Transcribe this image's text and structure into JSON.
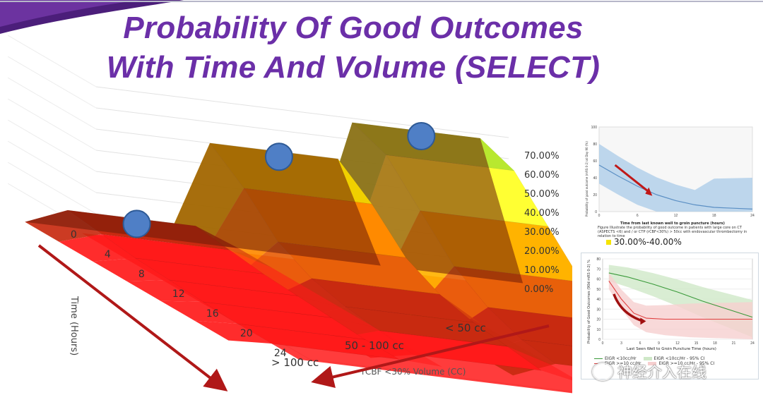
{
  "slide": {
    "title_line1": "Probability Of Good Outcomes",
    "title_line2": "With Time And Volume (SELECT)"
  },
  "chart_data": [
    {
      "type": "surface3d",
      "title": "Probability Of Good Outcomes With Time And Volume (SELECT)",
      "x_axis": {
        "label": "Time (Hours)",
        "ticks": [
          "0",
          "4",
          "8",
          "12",
          "16",
          "20",
          "24"
        ]
      },
      "y_axis": {
        "label": "rCBF <30% Volume (CC)",
        "categories": [
          "> 100 cc",
          "50 - 100 cc",
          "< 50 cc"
        ]
      },
      "z_axis": {
        "ticks": [
          "0.00%",
          "10.00%",
          "20.00%",
          "30.00%",
          "40.00%",
          "50.00%",
          "60.00%",
          "70.00%"
        ],
        "zlim": [
          0,
          70
        ]
      },
      "series": [
        {
          "name": "> 100 cc",
          "values": [
            10,
            8,
            6,
            5,
            4,
            3,
            3
          ]
        },
        {
          "name": "50 - 100 cc",
          "values": [
            50,
            38,
            22,
            14,
            10,
            8,
            6
          ]
        },
        {
          "name": "< 50 cc",
          "values": [
            68,
            62,
            45,
            28,
            18,
            12,
            10
          ]
        }
      ],
      "color_bands": [
        "#ff1a1a",
        "#c82a10",
        "#e8600a",
        "#ff8a00",
        "#ffb300",
        "#f0d000",
        "#ffff33",
        "#b8e830",
        "#5fcf2a"
      ],
      "markers": [
        {
          "series": "> 100 cc",
          "time": 0
        },
        {
          "series": "50 - 100 cc",
          "time": 0
        },
        {
          "series": "< 50 cc",
          "time": 0
        }
      ]
    },
    {
      "type": "line",
      "xlabel": "Time from last known well to groin puncture (hours)",
      "ylabel": "Probability of good outcome (mRS 0-2) at Day 90 (%)",
      "x_ticks": [
        "0",
        "6",
        "12",
        "18",
        "24"
      ],
      "y_ticks": [
        "0",
        "20",
        "40",
        "60",
        "80",
        "100"
      ],
      "series": [
        {
          "name": "probability",
          "x": [
            0,
            3,
            6,
            9,
            12,
            15,
            18,
            21,
            24
          ],
          "values": [
            55,
            42,
            30,
            20,
            13,
            8,
            5,
            4,
            3
          ]
        }
      ],
      "caption": "Figure Illustrate the probability of good outcome in patients with large core on CT (ASPECTS <6) and / or CTP (rCBF<30%) > 50cc with endovascular thrombectomy in relation to time",
      "legend": "30.00%-40.00%"
    },
    {
      "type": "line",
      "xlabel": "Last Seen Well to Groin Puncture Time (hours)",
      "ylabel": "Probability of Good Outcomes (90d mRS 0-2) %",
      "x_ticks": [
        "0",
        "3",
        "6",
        "9",
        "12",
        "15",
        "18",
        "21",
        "24"
      ],
      "y_ticks": [
        "0",
        "10",
        "20",
        "30",
        "40",
        "50",
        "60",
        "70",
        "80"
      ],
      "series": [
        {
          "name": "EIGR <10cc/Hr",
          "x": [
            1,
            4,
            8,
            12,
            16,
            20,
            24
          ],
          "values": [
            66,
            62,
            55,
            47,
            38,
            30,
            22
          ]
        },
        {
          "name": "EIGR >=10 cc/Hr",
          "x": [
            1,
            3,
            5,
            7,
            10,
            14,
            24
          ],
          "values": [
            58,
            40,
            26,
            21,
            20,
            20,
            20
          ]
        }
      ],
      "legend": [
        "EIGR <10cc/Hr",
        "EIGR <10cc/Hr - 95% CI",
        "EIGR >=10 cc/Hr",
        "EIGR >=10 cc/Hr - 95% CI"
      ]
    }
  ],
  "watermark": "神经介入在线"
}
